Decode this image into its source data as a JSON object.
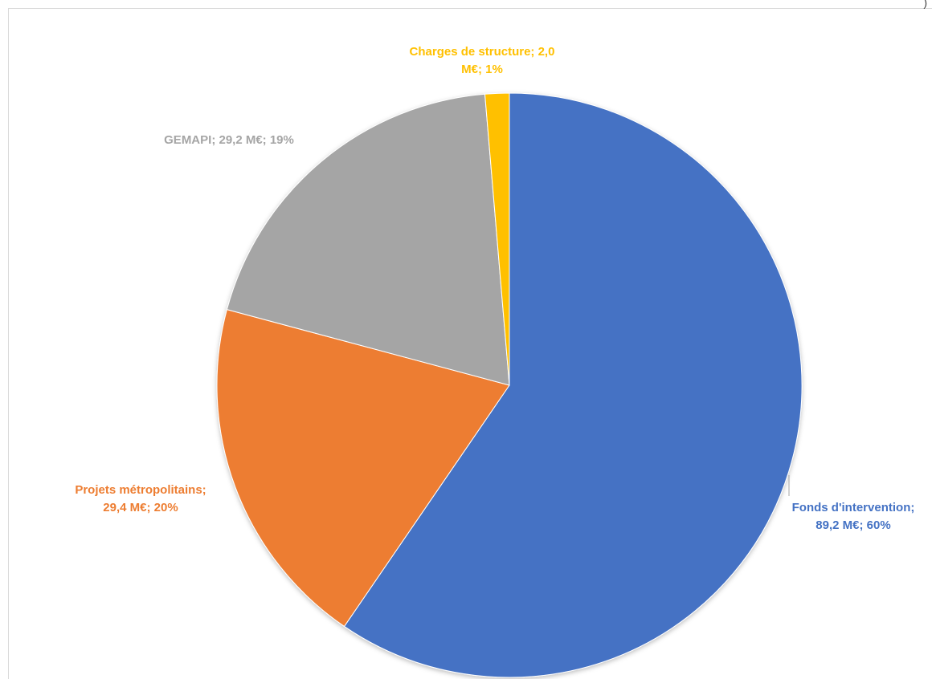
{
  "chart_data": {
    "type": "pie",
    "title": "",
    "slices": [
      {
        "name": "Fonds d'intervention",
        "value": 89.2,
        "percent": 60,
        "color": "#4472C4",
        "label_line1": "Fonds d'intervention;",
        "label_line2": "89,2 M€; 60%"
      },
      {
        "name": "Projets métropolitains",
        "value": 29.4,
        "percent": 20,
        "color": "#ED7D31",
        "label_line1": "Projets métropolitains;",
        "label_line2": "29,4 M€; 20%"
      },
      {
        "name": "GEMAPI",
        "value": 29.2,
        "percent": 19,
        "color": "#A5A5A5",
        "label_line1": "GEMAPI; 29,2 M€; 19%",
        "label_line2": ""
      },
      {
        "name": "Charges de structure",
        "value": 2.0,
        "percent": 1,
        "color": "#FFC000",
        "label_line1": "Charges de structure; 2,0",
        "label_line2": "M€; 1%"
      }
    ],
    "legend": "none",
    "start_angle": "top",
    "direction": "clockwise"
  },
  "corner_mark": ")"
}
